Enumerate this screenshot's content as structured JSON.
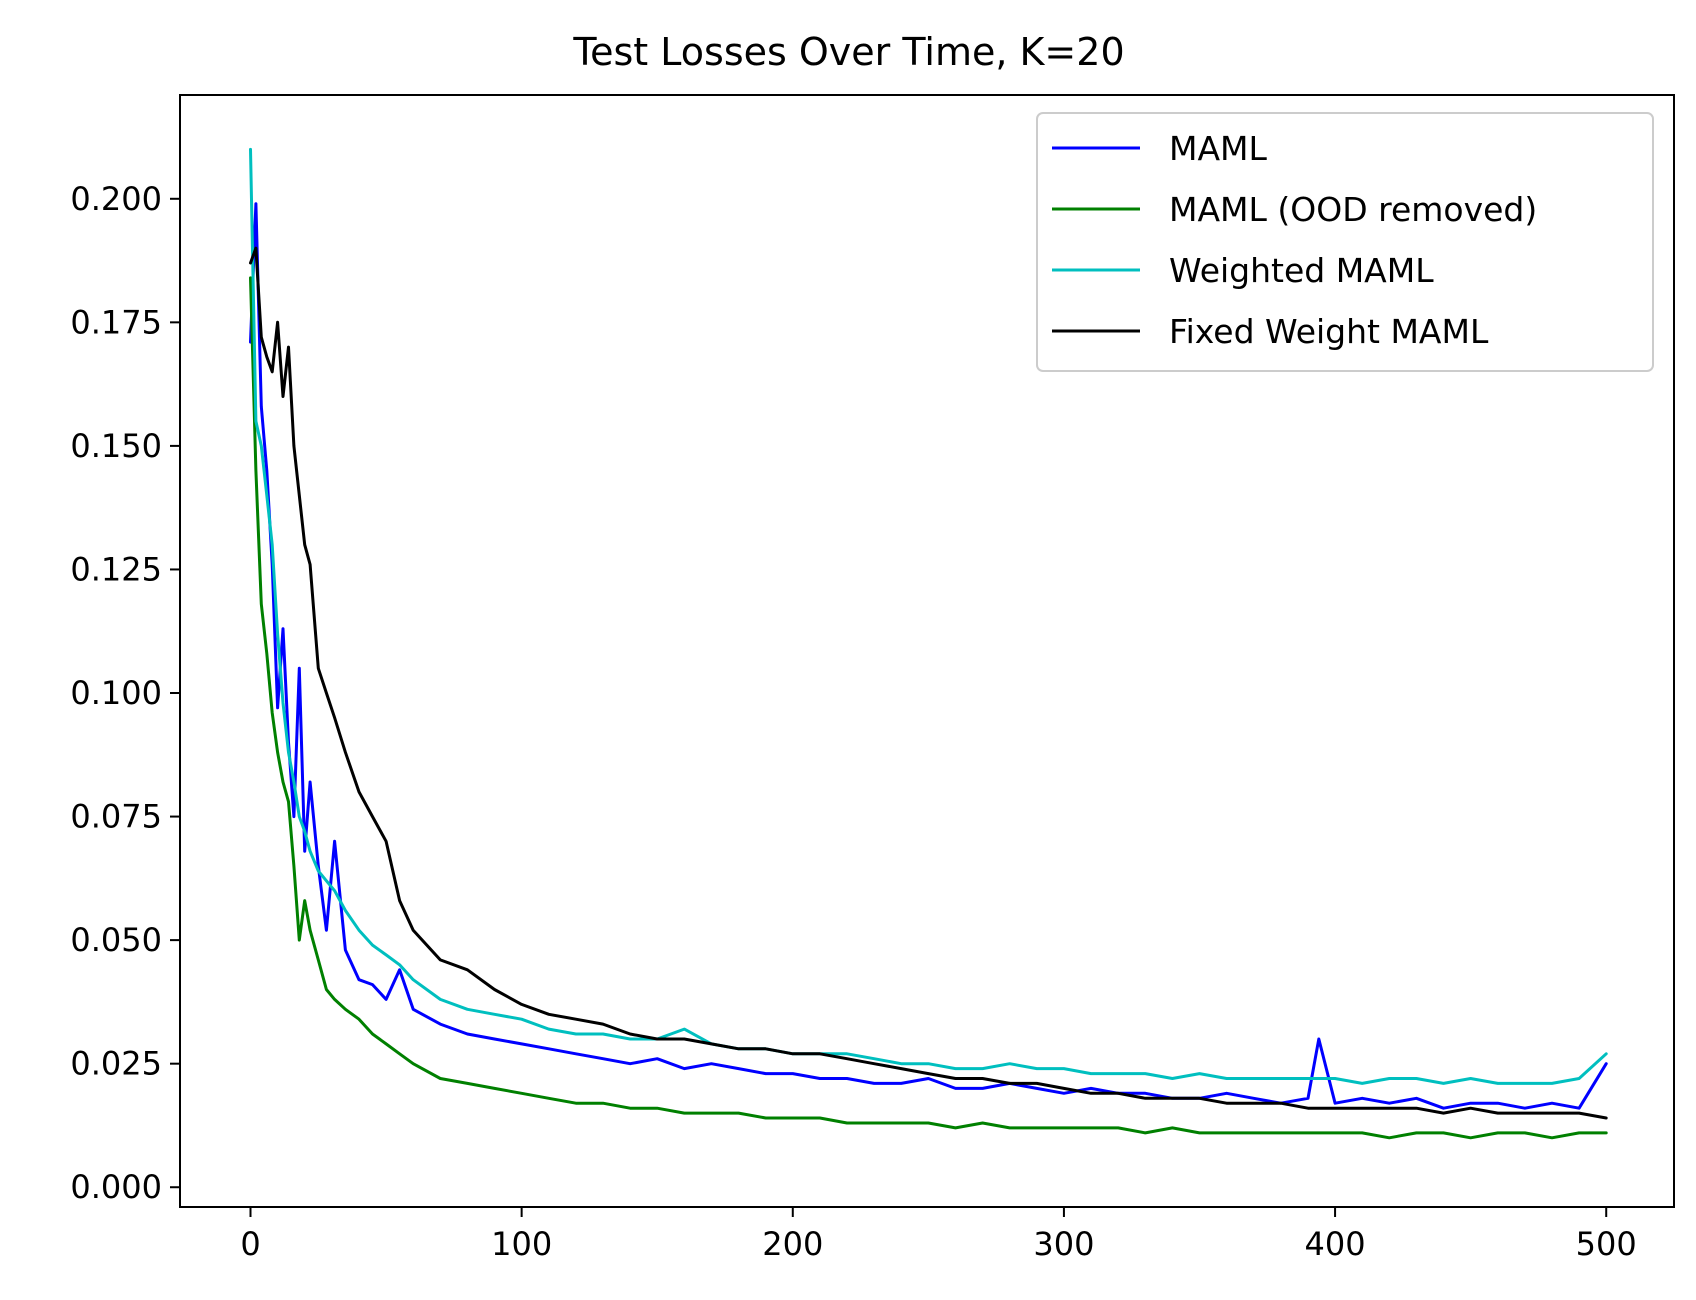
{
  "chart_data": {
    "type": "line",
    "title": "Test Losses Over Time, K=20",
    "xlabel": "",
    "ylabel": "",
    "xlim": [
      -26,
      525
    ],
    "ylim": [
      -0.004,
      0.221
    ],
    "xticks": [
      0,
      100,
      200,
      300,
      400,
      500
    ],
    "xtick_labels": [
      "0",
      "100",
      "200",
      "300",
      "400",
      "500"
    ],
    "yticks": [
      0.0,
      0.025,
      0.05,
      0.075,
      0.1,
      0.125,
      0.15,
      0.175,
      0.2
    ],
    "ytick_labels": [
      "0.000",
      "0.025",
      "0.050",
      "0.075",
      "0.100",
      "0.125",
      "0.150",
      "0.175",
      "0.200"
    ],
    "grid": false,
    "legend_position": "upper right",
    "series": [
      {
        "name": "MAML",
        "color": "#0000ff",
        "x": [
          0,
          2,
          4,
          6,
          8,
          10,
          12,
          14,
          16,
          18,
          20,
          22,
          25,
          28,
          31,
          35,
          40,
          45,
          50,
          55,
          60,
          70,
          80,
          90,
          100,
          110,
          120,
          130,
          140,
          150,
          160,
          170,
          180,
          190,
          200,
          210,
          220,
          230,
          240,
          250,
          260,
          270,
          280,
          290,
          300,
          310,
          320,
          330,
          340,
          350,
          360,
          370,
          380,
          390,
          394,
          400,
          410,
          420,
          430,
          440,
          450,
          460,
          470,
          480,
          490,
          500
        ],
        "y": [
          0.171,
          0.199,
          0.158,
          0.145,
          0.126,
          0.097,
          0.113,
          0.09,
          0.075,
          0.105,
          0.068,
          0.082,
          0.065,
          0.052,
          0.07,
          0.048,
          0.042,
          0.041,
          0.038,
          0.044,
          0.036,
          0.033,
          0.031,
          0.03,
          0.029,
          0.028,
          0.027,
          0.026,
          0.025,
          0.026,
          0.024,
          0.025,
          0.024,
          0.023,
          0.023,
          0.022,
          0.022,
          0.021,
          0.021,
          0.022,
          0.02,
          0.02,
          0.021,
          0.02,
          0.019,
          0.02,
          0.019,
          0.019,
          0.018,
          0.018,
          0.019,
          0.018,
          0.017,
          0.018,
          0.03,
          0.017,
          0.018,
          0.017,
          0.018,
          0.016,
          0.017,
          0.017,
          0.016,
          0.017,
          0.016,
          0.025
        ]
      },
      {
        "name": "MAML (OOD removed)",
        "color": "#008000",
        "x": [
          0,
          2,
          4,
          6,
          8,
          10,
          12,
          14,
          16,
          18,
          20,
          22,
          25,
          28,
          31,
          35,
          40,
          45,
          50,
          55,
          60,
          70,
          80,
          90,
          100,
          110,
          120,
          130,
          140,
          150,
          160,
          170,
          180,
          190,
          200,
          210,
          220,
          230,
          240,
          250,
          260,
          270,
          280,
          290,
          300,
          310,
          320,
          330,
          340,
          350,
          360,
          370,
          380,
          390,
          400,
          410,
          420,
          430,
          440,
          450,
          460,
          470,
          480,
          490,
          500
        ],
        "y": [
          0.184,
          0.145,
          0.118,
          0.108,
          0.096,
          0.088,
          0.082,
          0.078,
          0.065,
          0.05,
          0.058,
          0.052,
          0.046,
          0.04,
          0.038,
          0.036,
          0.034,
          0.031,
          0.029,
          0.027,
          0.025,
          0.022,
          0.021,
          0.02,
          0.019,
          0.018,
          0.017,
          0.017,
          0.016,
          0.016,
          0.015,
          0.015,
          0.015,
          0.014,
          0.014,
          0.014,
          0.013,
          0.013,
          0.013,
          0.013,
          0.012,
          0.013,
          0.012,
          0.012,
          0.012,
          0.012,
          0.012,
          0.011,
          0.012,
          0.011,
          0.011,
          0.011,
          0.011,
          0.011,
          0.011,
          0.011,
          0.01,
          0.011,
          0.011,
          0.01,
          0.011,
          0.011,
          0.01,
          0.011,
          0.011
        ]
      },
      {
        "name": "Weighted MAML",
        "color": "#00bfbf",
        "x": [
          0,
          2,
          4,
          6,
          8,
          10,
          12,
          14,
          16,
          18,
          20,
          22,
          25,
          28,
          31,
          35,
          40,
          45,
          50,
          55,
          60,
          70,
          80,
          90,
          100,
          110,
          120,
          130,
          140,
          150,
          160,
          170,
          180,
          190,
          200,
          210,
          220,
          230,
          240,
          250,
          260,
          270,
          280,
          290,
          300,
          310,
          320,
          330,
          340,
          350,
          360,
          370,
          380,
          390,
          400,
          410,
          420,
          430,
          440,
          450,
          460,
          470,
          480,
          490,
          500
        ],
        "y": [
          0.21,
          0.155,
          0.15,
          0.14,
          0.13,
          0.112,
          0.098,
          0.088,
          0.082,
          0.075,
          0.072,
          0.068,
          0.064,
          0.062,
          0.06,
          0.056,
          0.052,
          0.049,
          0.047,
          0.045,
          0.042,
          0.038,
          0.036,
          0.035,
          0.034,
          0.032,
          0.031,
          0.031,
          0.03,
          0.03,
          0.032,
          0.029,
          0.028,
          0.028,
          0.027,
          0.027,
          0.027,
          0.026,
          0.025,
          0.025,
          0.024,
          0.024,
          0.025,
          0.024,
          0.024,
          0.023,
          0.023,
          0.023,
          0.022,
          0.023,
          0.022,
          0.022,
          0.022,
          0.022,
          0.022,
          0.021,
          0.022,
          0.022,
          0.021,
          0.022,
          0.021,
          0.021,
          0.021,
          0.022,
          0.027
        ]
      },
      {
        "name": "Fixed Weight MAML",
        "color": "#000000",
        "x": [
          0,
          2,
          4,
          6,
          8,
          10,
          12,
          14,
          16,
          18,
          20,
          22,
          25,
          28,
          31,
          35,
          40,
          45,
          50,
          55,
          60,
          70,
          80,
          90,
          100,
          110,
          120,
          130,
          140,
          150,
          160,
          170,
          180,
          190,
          200,
          210,
          220,
          230,
          240,
          250,
          260,
          270,
          280,
          290,
          300,
          310,
          320,
          330,
          340,
          350,
          360,
          370,
          380,
          390,
          400,
          410,
          420,
          430,
          440,
          450,
          460,
          470,
          480,
          490,
          500
        ],
        "y": [
          0.187,
          0.19,
          0.172,
          0.168,
          0.165,
          0.175,
          0.16,
          0.17,
          0.15,
          0.14,
          0.13,
          0.126,
          0.105,
          0.1,
          0.095,
          0.088,
          0.08,
          0.075,
          0.07,
          0.058,
          0.052,
          0.046,
          0.044,
          0.04,
          0.037,
          0.035,
          0.034,
          0.033,
          0.031,
          0.03,
          0.03,
          0.029,
          0.028,
          0.028,
          0.027,
          0.027,
          0.026,
          0.025,
          0.024,
          0.023,
          0.022,
          0.022,
          0.021,
          0.021,
          0.02,
          0.019,
          0.019,
          0.018,
          0.018,
          0.018,
          0.017,
          0.017,
          0.017,
          0.016,
          0.016,
          0.016,
          0.016,
          0.016,
          0.015,
          0.016,
          0.015,
          0.015,
          0.015,
          0.015,
          0.014
        ]
      }
    ]
  }
}
